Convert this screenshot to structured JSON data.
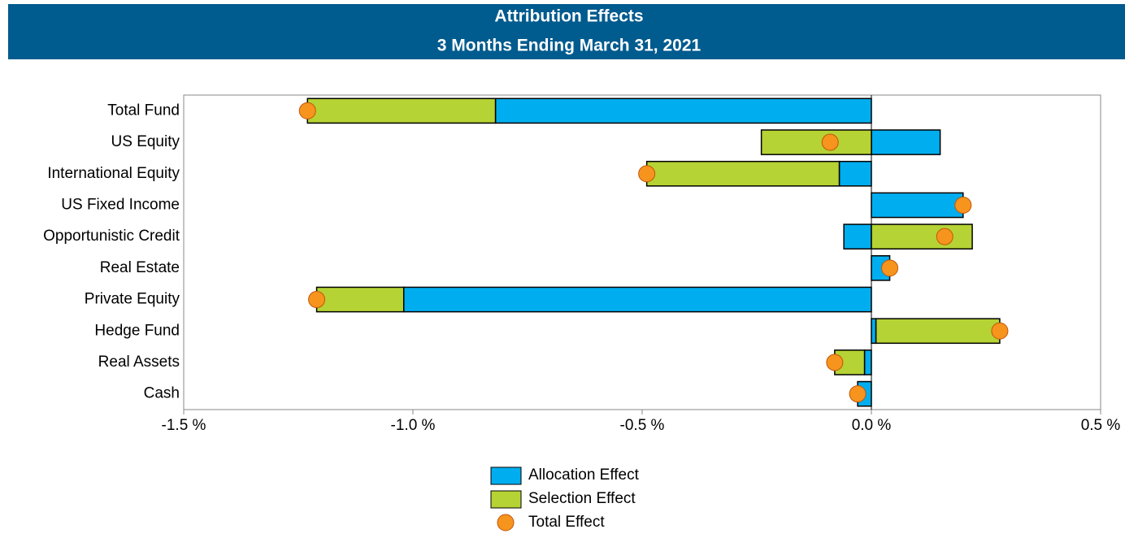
{
  "chart_data": {
    "type": "stacked-barh",
    "title": "Attribution Effects",
    "subtitle": "3 Months Ending March 31, 2021",
    "categories": [
      "Total Fund",
      "US Equity",
      "International Equity",
      "US Fixed Income",
      "Opportunistic Credit",
      "Real Estate",
      "Private Equity",
      "Hedge Fund",
      "Real Assets",
      "Cash"
    ],
    "series": [
      {
        "name": "Allocation Effect",
        "color": "#00aeef",
        "values": [
          -0.82,
          0.15,
          -0.07,
          0.2,
          -0.06,
          0.04,
          -1.02,
          0.01,
          -0.015,
          -0.03
        ]
      },
      {
        "name": "Selection Effect",
        "color": "#b5d334",
        "values": [
          -0.41,
          -0.24,
          -0.42,
          0.0,
          0.22,
          0.0,
          -0.19,
          0.27,
          -0.065,
          0.0
        ]
      }
    ],
    "total": {
      "name": "Total Effect",
      "color": "#f7941d",
      "values": [
        -1.23,
        -0.09,
        -0.49,
        0.2,
        0.16,
        0.04,
        -1.21,
        0.28,
        -0.08,
        -0.03
      ]
    },
    "xlim": [
      -1.5,
      0.5
    ],
    "xticks": [
      {
        "value": -1.5,
        "label": "-1.5 %"
      },
      {
        "value": -1.0,
        "label": "-1.0 %"
      },
      {
        "value": -0.5,
        "label": "-0.5 %"
      },
      {
        "value": 0.0,
        "label": "0.0 %"
      },
      {
        "value": 0.5,
        "label": "0.5 %"
      }
    ],
    "legend": "bottom"
  }
}
